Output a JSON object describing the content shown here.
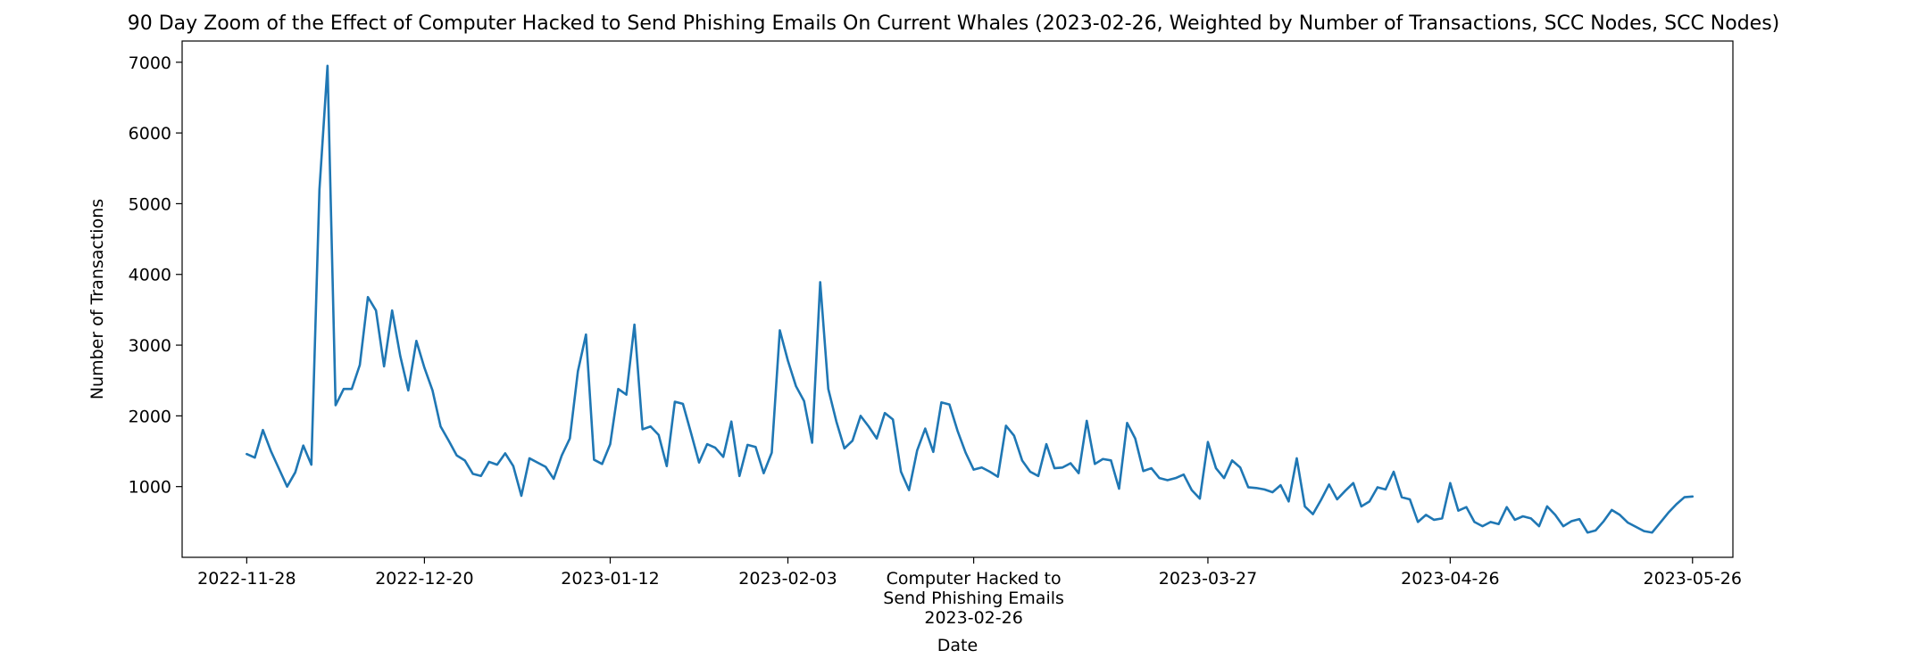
{
  "chart_data": {
    "type": "line",
    "title": "90 Day Zoom of the Effect of Computer Hacked to Send Phishing Emails On Current Whales (2023-02-26, Weighted by Number of Transactions, SCC Nodes, SCC Nodes)",
    "xlabel": "Date",
    "ylabel": "Number of Transactions",
    "ylim": [
      0,
      7300
    ],
    "yticks": [
      1000,
      2000,
      3000,
      4000,
      5000,
      6000,
      7000
    ],
    "xlim": [
      "2022-11-20",
      "2023-05-31"
    ],
    "xticks": [
      {
        "date": "2022-11-28",
        "label": "2022-11-28"
      },
      {
        "date": "2022-12-20",
        "label": "2022-12-20"
      },
      {
        "date": "2023-01-12",
        "label": "2023-01-12"
      },
      {
        "date": "2023-02-03",
        "label": "2023-02-03"
      },
      {
        "date": "2023-03-27",
        "label": "2023-03-27"
      },
      {
        "date": "2023-04-26",
        "label": "2023-04-26"
      },
      {
        "date": "2023-05-26",
        "label": "2023-05-26"
      }
    ],
    "event": {
      "date": "2023-02-26",
      "label_lines": [
        "Computer Hacked to",
        "Send Phishing Emails",
        "2023-02-26"
      ]
    },
    "grid": false,
    "legend": "none",
    "color": "#1f77b4",
    "series": [
      {
        "x": [
          "2022-11-28",
          "2022-11-29",
          "2022-11-30",
          "2022-12-01",
          "2022-12-02",
          "2022-12-03",
          "2022-12-04",
          "2022-12-05",
          "2022-12-06",
          "2022-12-07",
          "2022-12-08",
          "2022-12-09",
          "2022-12-10",
          "2022-12-11",
          "2022-12-12",
          "2022-12-13",
          "2022-12-14",
          "2022-12-15",
          "2022-12-16",
          "2022-12-17",
          "2022-12-18",
          "2022-12-19",
          "2022-12-20",
          "2022-12-21",
          "2022-12-22",
          "2022-12-23",
          "2022-12-24",
          "2022-12-25",
          "2022-12-26",
          "2022-12-27",
          "2022-12-28",
          "2022-12-29",
          "2022-12-30",
          "2022-12-31",
          "2023-01-01",
          "2023-01-02",
          "2023-01-03",
          "2023-01-04",
          "2023-01-05",
          "2023-01-06",
          "2023-01-07",
          "2023-01-08",
          "2023-01-09",
          "2023-01-10",
          "2023-01-11",
          "2023-01-12",
          "2023-01-13",
          "2023-01-14",
          "2023-01-15",
          "2023-01-16",
          "2023-01-17",
          "2023-01-18",
          "2023-01-19",
          "2023-01-20",
          "2023-01-21",
          "2023-01-22",
          "2023-01-23",
          "2023-01-24",
          "2023-01-25",
          "2023-01-26",
          "2023-01-27",
          "2023-01-28",
          "2023-01-29",
          "2023-01-30",
          "2023-01-31",
          "2023-02-01",
          "2023-02-02",
          "2023-02-03",
          "2023-02-04",
          "2023-02-05",
          "2023-02-06",
          "2023-02-07",
          "2023-02-08",
          "2023-02-09",
          "2023-02-10",
          "2023-02-11",
          "2023-02-12",
          "2023-02-13",
          "2023-02-14",
          "2023-02-15",
          "2023-02-16",
          "2023-02-17",
          "2023-02-18",
          "2023-02-19",
          "2023-02-20",
          "2023-02-21",
          "2023-02-22",
          "2023-02-23",
          "2023-02-24",
          "2023-02-25",
          "2023-02-26",
          "2023-02-27",
          "2023-02-28",
          "2023-03-01",
          "2023-03-02",
          "2023-03-03",
          "2023-03-04",
          "2023-03-05",
          "2023-03-06",
          "2023-03-07",
          "2023-03-08",
          "2023-03-09",
          "2023-03-10",
          "2023-03-11",
          "2023-03-12",
          "2023-03-13",
          "2023-03-14",
          "2023-03-15",
          "2023-03-16",
          "2023-03-17",
          "2023-03-18",
          "2023-03-19",
          "2023-03-20",
          "2023-03-21",
          "2023-03-22",
          "2023-03-23",
          "2023-03-24",
          "2023-03-25",
          "2023-03-26",
          "2023-03-27",
          "2023-03-28",
          "2023-03-29",
          "2023-03-30",
          "2023-03-31",
          "2023-04-01",
          "2023-04-02",
          "2023-04-03",
          "2023-04-04",
          "2023-04-05",
          "2023-04-06",
          "2023-04-07",
          "2023-04-08",
          "2023-04-09",
          "2023-04-10",
          "2023-04-11",
          "2023-04-12",
          "2023-04-13",
          "2023-04-14",
          "2023-04-15",
          "2023-04-16",
          "2023-04-17",
          "2023-04-18",
          "2023-04-19",
          "2023-04-20",
          "2023-04-21",
          "2023-04-22",
          "2023-04-23",
          "2023-04-24",
          "2023-04-25",
          "2023-04-26",
          "2023-04-27",
          "2023-04-28",
          "2023-04-29",
          "2023-04-30",
          "2023-05-01",
          "2023-05-02",
          "2023-05-03",
          "2023-05-04",
          "2023-05-05",
          "2023-05-06",
          "2023-05-07",
          "2023-05-08",
          "2023-05-09",
          "2023-05-10",
          "2023-05-11",
          "2023-05-12",
          "2023-05-13",
          "2023-05-14",
          "2023-05-15",
          "2023-05-16",
          "2023-05-17",
          "2023-05-18",
          "2023-05-19",
          "2023-05-20",
          "2023-05-21",
          "2023-05-22",
          "2023-05-23",
          "2023-05-24",
          "2023-05-25",
          "2023-05-26"
        ],
        "y": [
          1460,
          1410,
          1800,
          1500,
          1250,
          1000,
          1200,
          1580,
          1310,
          5200,
          6950,
          2150,
          2380,
          2380,
          2720,
          3680,
          3490,
          2700,
          3490,
          2850,
          2360,
          3060,
          2680,
          2360,
          1850,
          1650,
          1440,
          1370,
          1180,
          1150,
          1350,
          1310,
          1470,
          1290,
          870,
          1400,
          1340,
          1280,
          1110,
          1440,
          1680,
          2630,
          3150,
          1380,
          1320,
          1600,
          2380,
          2300,
          3290,
          1810,
          1850,
          1730,
          1290,
          2200,
          2170,
          1760,
          1340,
          1600,
          1550,
          1420,
          1920,
          1150,
          1590,
          1560,
          1190,
          1480,
          3210,
          2780,
          2420,
          2210,
          1620,
          3890,
          2380,
          1920,
          1540,
          1650,
          2000,
          1850,
          1680,
          2040,
          1950,
          1210,
          950,
          1510,
          1820,
          1490,
          2190,
          2160,
          1790,
          1480,
          1240,
          1270,
          1210,
          1140,
          1860,
          1720,
          1370,
          1210,
          1150,
          1600,
          1260,
          1270,
          1330,
          1190,
          1930,
          1320,
          1390,
          1370,
          970,
          1900,
          1680,
          1220,
          1260,
          1120,
          1090,
          1120,
          1170,
          950,
          830,
          1630,
          1260,
          1120,
          1370,
          1270,
          990,
          980,
          960,
          920,
          1020,
          790,
          1400,
          720,
          610,
          810,
          1030,
          820,
          940,
          1050,
          720,
          790,
          990,
          960,
          1210,
          850,
          820,
          500,
          600,
          530,
          550,
          1050,
          660,
          710,
          500,
          440,
          500,
          470,
          710,
          530,
          580,
          550,
          440,
          720,
          600,
          440,
          510,
          540,
          350,
          380,
          510,
          670,
          600,
          490,
          430,
          370,
          350,
          490,
          630,
          750,
          850,
          860
        ]
      }
    ]
  }
}
